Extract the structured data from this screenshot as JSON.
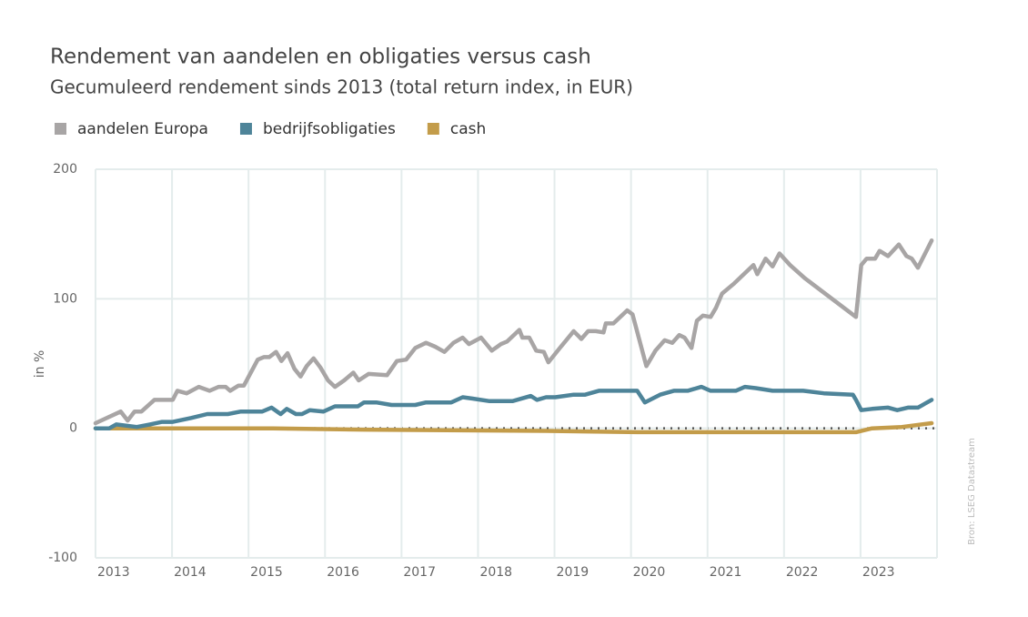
{
  "chart_data": {
    "type": "line",
    "title": "Rendement van aandelen en obligaties versus cash",
    "subtitle": "Gecumuleerd rendement sinds 2013 (total return index, in EUR)",
    "y_label": "in %",
    "source": "Bron: LSEG Datastream",
    "xlim": [
      2013,
      2024
    ],
    "xticks": [
      2013,
      2014,
      2015,
      2016,
      2017,
      2018,
      2019,
      2020,
      2021,
      2022,
      2023
    ],
    "ylim": [
      -100,
      200
    ],
    "yticks": [
      -100,
      0,
      100,
      200
    ],
    "grid": true,
    "legend": "top-left",
    "series": [
      {
        "name": "aandelen Europa",
        "color": "#a8a5a5",
        "x": [
          2013.0,
          2013.33,
          2013.42,
          2013.51,
          2013.6,
          2013.77,
          2014.01,
          2014.07,
          2014.19,
          2014.35,
          2014.49,
          2014.61,
          2014.7,
          2014.76,
          2014.87,
          2014.94,
          2015.12,
          2015.2,
          2015.27,
          2015.36,
          2015.43,
          2015.51,
          2015.6,
          2015.68,
          2015.76,
          2015.85,
          2015.94,
          2016.04,
          2016.13,
          2016.25,
          2016.37,
          2016.44,
          2016.57,
          2016.81,
          2016.94,
          2017.06,
          2017.18,
          2017.32,
          2017.44,
          2017.56,
          2017.68,
          2017.8,
          2017.88,
          2018.04,
          2018.18,
          2018.3,
          2018.38,
          2018.54,
          2018.58,
          2018.67,
          2018.76,
          2018.86,
          2018.92,
          2019.07,
          2019.25,
          2019.35,
          2019.44,
          2019.54,
          2019.64,
          2019.67,
          2019.77,
          2019.95,
          2020.02,
          2020.2,
          2020.32,
          2020.44,
          2020.54,
          2020.63,
          2020.7,
          2020.79,
          2020.86,
          2020.94,
          2021.04,
          2021.11,
          2021.19,
          2021.35,
          2021.6,
          2021.65,
          2021.76,
          2021.85,
          2021.94,
          2022.08,
          2022.27,
          2022.94,
          2023.01,
          2023.08,
          2023.19,
          2023.25,
          2023.36,
          2023.5,
          2023.6,
          2023.67,
          2023.75,
          2023.93
        ],
        "values": [
          4,
          13,
          6,
          13,
          13,
          22,
          22,
          29,
          27,
          32,
          29,
          32,
          32,
          29,
          33,
          33,
          53,
          55,
          55,
          59,
          52,
          58,
          46,
          40,
          48,
          54,
          47,
          37,
          32,
          37,
          43,
          37,
          42,
          41,
          52,
          53,
          62,
          66,
          63,
          59,
          66,
          70,
          65,
          70,
          60,
          65,
          67,
          76,
          70,
          70,
          60,
          59,
          51,
          62,
          75,
          69,
          75,
          75,
          74,
          81,
          81,
          91,
          88,
          48,
          60,
          68,
          66,
          72,
          70,
          62,
          83,
          87,
          86,
          93,
          104,
          112,
          126,
          119,
          131,
          125,
          135,
          126,
          116,
          86,
          126,
          131,
          131,
          137,
          133,
          142,
          133,
          131,
          124,
          145
        ]
      },
      {
        "name": "bedrijfsobligaties",
        "color": "#4e8499",
        "x": [
          2013.0,
          2013.18,
          2013.27,
          2013.54,
          2013.71,
          2013.87,
          2014.01,
          2014.25,
          2014.46,
          2014.73,
          2014.9,
          2015.18,
          2015.3,
          2015.42,
          2015.5,
          2015.62,
          2015.7,
          2015.8,
          2015.98,
          2016.13,
          2016.43,
          2016.51,
          2016.67,
          2016.87,
          2017.18,
          2017.32,
          2017.44,
          2017.65,
          2017.8,
          2017.92,
          2018.15,
          2018.45,
          2018.69,
          2018.77,
          2018.89,
          2019.01,
          2019.25,
          2019.4,
          2019.58,
          2020.08,
          2020.18,
          2020.38,
          2020.56,
          2020.74,
          2020.92,
          2021.04,
          2021.37,
          2021.49,
          2021.63,
          2021.85,
          2022.25,
          2022.52,
          2022.9,
          2022.94,
          2023.01,
          2023.15,
          2023.36,
          2023.48,
          2023.62,
          2023.75,
          2023.93
        ],
        "values": [
          0,
          0,
          3,
          1,
          3,
          5,
          5,
          8,
          11,
          11,
          13,
          13,
          16,
          11,
          15,
          11,
          11,
          14,
          13,
          17,
          17,
          20,
          20,
          18,
          18,
          20,
          20,
          20,
          24,
          23,
          21,
          21,
          25,
          22,
          24,
          24,
          26,
          26,
          29,
          29,
          20,
          26,
          29,
          29,
          32,
          29,
          29,
          32,
          31,
          29,
          29,
          27,
          26,
          22,
          14,
          15,
          16,
          14,
          16,
          16,
          22
        ]
      },
      {
        "name": "cash",
        "color": "#c39c4a",
        "x": [
          2013.0,
          2015.32,
          2016.51,
          2018.89,
          2020.08,
          2022.94,
          2023.15,
          2023.54,
          2023.93
        ],
        "values": [
          0,
          0,
          -1,
          -2,
          -3,
          -3,
          0,
          1,
          4
        ]
      }
    ]
  }
}
